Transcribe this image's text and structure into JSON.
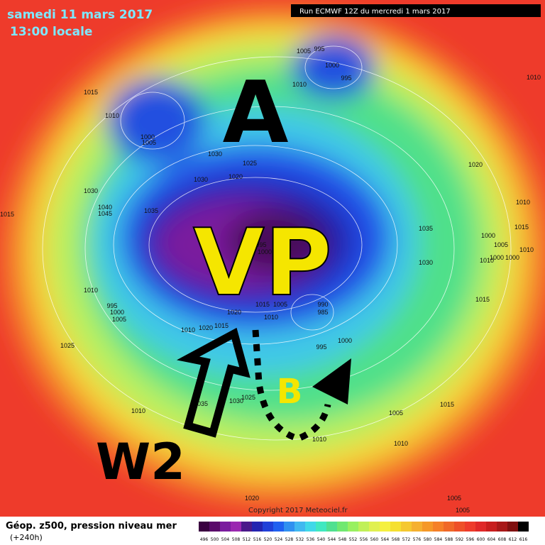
{
  "header": {
    "title": "samedi 11 mars 2017",
    "time": "13:00 locale",
    "run": "Run ECMWF 12Z du mercredi 1 mars 2017"
  },
  "map": {
    "labels": {
      "high": "A",
      "vortex": "VP",
      "low": "B",
      "wave": "W2"
    },
    "isobars": [
      1005,
      995,
      1000,
      995,
      1010,
      1015,
      1010,
      1000,
      1005,
      1030,
      1025,
      1020,
      1030,
      1030,
      1040,
      1045,
      1035,
      1015,
      1010,
      1020,
      1010,
      1015,
      1000,
      1005,
      1010,
      1010,
      1000,
      1000,
      1035,
      1030,
      995,
      1000,
      1010,
      995,
      1000,
      1005,
      1015,
      1020,
      1015,
      1005,
      1010,
      990,
      985,
      1010,
      1020,
      1015,
      1025,
      995,
      1000,
      1035,
      1030,
      1025,
      1010,
      1005,
      1015,
      1010,
      1010,
      1020,
      1005,
      1005
    ]
  },
  "footer": {
    "title": "Géop. z500, pression niveau mer",
    "lead": "(+240h)",
    "copyright": "Copyright 2017 Meteociel.fr"
  },
  "legend": {
    "ticks": [
      496,
      500,
      504,
      508,
      512,
      516,
      520,
      524,
      528,
      532,
      536,
      540,
      544,
      548,
      552,
      556,
      560,
      564,
      568,
      572,
      576,
      580,
      584,
      588,
      592,
      596,
      600,
      604,
      608,
      612,
      616
    ]
  }
}
